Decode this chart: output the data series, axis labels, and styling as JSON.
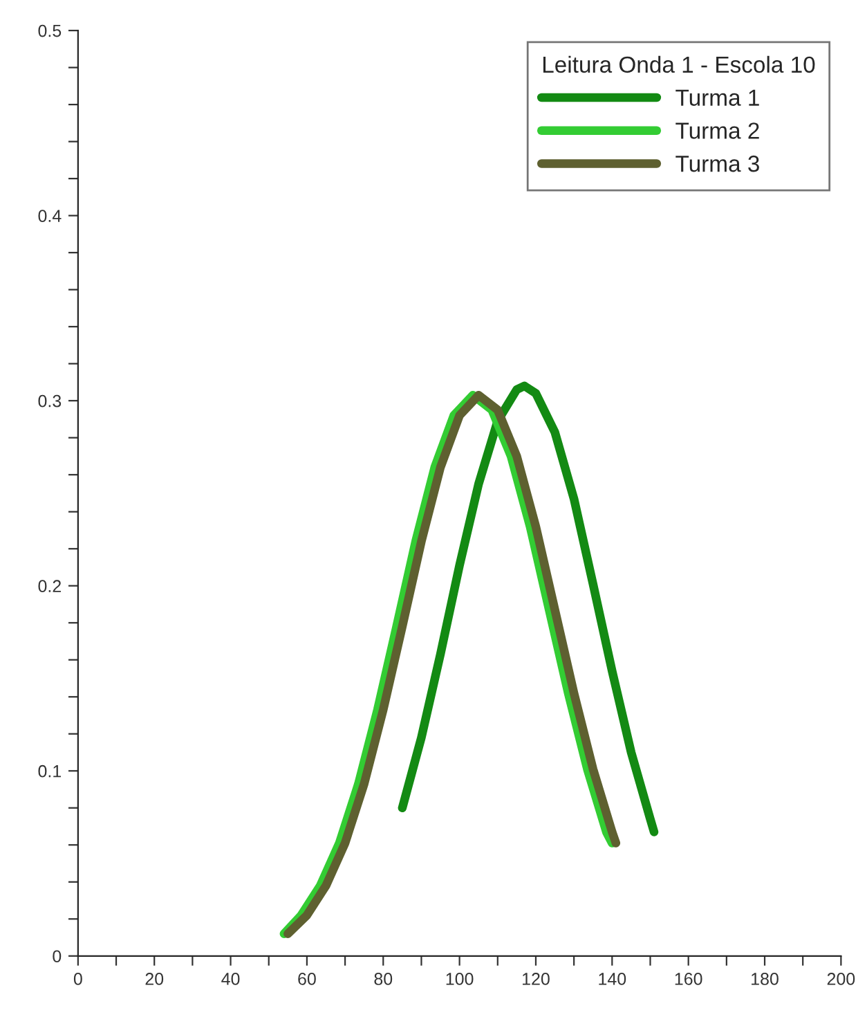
{
  "chart_data": {
    "type": "line",
    "legend_title": "Leitura Onda 1 - Escola 10",
    "legend": "top right",
    "grid": false,
    "marker": "none",
    "line_style": "solid",
    "xlim": [
      0,
      200
    ],
    "ylim": [
      0,
      0.5
    ],
    "xticks": [
      0,
      {
        "value": 10,
        "label": null
      },
      20,
      {
        "value": 30,
        "label": null
      },
      40,
      {
        "value": 50,
        "label": null
      },
      60,
      {
        "value": 70,
        "label": null
      },
      80,
      {
        "value": 90,
        "label": null
      },
      100,
      {
        "value": 110,
        "label": null
      },
      120,
      {
        "value": 130,
        "label": null
      },
      140,
      {
        "value": 150,
        "label": null
      },
      160,
      {
        "value": 170,
        "label": null
      },
      180,
      {
        "value": 190,
        "label": null
      },
      200
    ],
    "yticks": [
      0,
      {
        "value": 0.02,
        "label": null
      },
      {
        "value": 0.04,
        "label": null
      },
      {
        "value": 0.06,
        "label": null
      },
      {
        "value": 0.08,
        "label": null
      },
      0.1,
      {
        "value": 0.12,
        "label": null
      },
      {
        "value": 0.14,
        "label": null
      },
      {
        "value": 0.16,
        "label": null
      },
      {
        "value": 0.18,
        "label": null
      },
      0.2,
      {
        "value": 0.22,
        "label": null
      },
      {
        "value": 0.24,
        "label": null
      },
      {
        "value": 0.26,
        "label": null
      },
      {
        "value": 0.28,
        "label": null
      },
      0.3,
      {
        "value": 0.32,
        "label": null
      },
      {
        "value": 0.34,
        "label": null
      },
      {
        "value": 0.36,
        "label": null
      },
      {
        "value": 0.38,
        "label": null
      },
      0.4,
      {
        "value": 0.42,
        "label": null
      },
      {
        "value": 0.44,
        "label": null
      },
      {
        "value": 0.46,
        "label": null
      },
      {
        "value": 0.48,
        "label": null
      },
      0.5
    ],
    "series": [
      {
        "name": "Turma 1",
        "color": "#138a13",
        "x": [
          85,
          90,
          95,
          100,
          105,
          110,
          115,
          117,
          120,
          125,
          130,
          135,
          140,
          145,
          150,
          151
        ],
        "values": [
          0.08,
          0.118,
          0.163,
          0.211,
          0.255,
          0.289,
          0.306,
          0.308,
          0.304,
          0.283,
          0.247,
          0.201,
          0.154,
          0.11,
          0.074,
          0.067
        ]
      },
      {
        "name": "Turma 2",
        "color": "#33cc33",
        "x": [
          54,
          58.5,
          63.5,
          68.5,
          73.5,
          78.5,
          83.5,
          88.5,
          93.5,
          98.5,
          103.5,
          108.5,
          113.5,
          118.5,
          123.5,
          128.5,
          133.5,
          138.5,
          140
        ],
        "values": [
          0.012,
          0.022,
          0.038,
          0.061,
          0.093,
          0.133,
          0.178,
          0.224,
          0.264,
          0.292,
          0.303,
          0.295,
          0.27,
          0.232,
          0.187,
          0.142,
          0.101,
          0.067,
          0.061
        ]
      },
      {
        "name": "Turma 3",
        "color": "#5e6030",
        "x": [
          55,
          60,
          65,
          70,
          75,
          80,
          85,
          90,
          95,
          100,
          105,
          110,
          115,
          120,
          125,
          130,
          135,
          140,
          141
        ],
        "values": [
          0.012,
          0.022,
          0.038,
          0.061,
          0.093,
          0.133,
          0.178,
          0.224,
          0.264,
          0.292,
          0.303,
          0.295,
          0.27,
          0.232,
          0.187,
          0.142,
          0.101,
          0.067,
          0.061
        ]
      }
    ]
  }
}
